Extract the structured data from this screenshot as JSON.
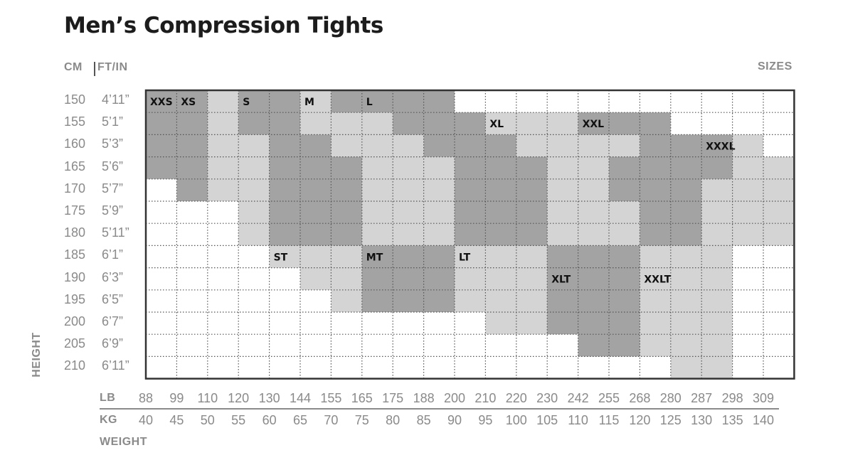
{
  "page": {
    "title": "Men’s Compression Tights",
    "cm_header": "CM",
    "ftin_header": "FT/IN",
    "sizes_header": "SIZES",
    "height_axis": "HEIGHT",
    "weight_axis": "WEIGHT",
    "lb_label": "LB",
    "kg_label": "KG"
  },
  "chart_data": {
    "type": "heatmap",
    "title": "Men’s Compression Tights",
    "ylabel": "HEIGHT",
    "xlabel": "WEIGHT",
    "height_cm": [
      "150",
      "155",
      "160",
      "165",
      "170",
      "175",
      "180",
      "185",
      "190",
      "195",
      "200",
      "205",
      "210"
    ],
    "height_ftin": [
      "4’11”",
      "5’1”",
      "5’3”",
      "5’6”",
      "5’7”",
      "5’9”",
      "5’11”",
      "6’1”",
      "6’3”",
      "6’5”",
      "6’7”",
      "6’9”",
      "6’11”"
    ],
    "weight_lb": [
      "88",
      "99",
      "110",
      "120",
      "130",
      "144",
      "155",
      "165",
      "175",
      "188",
      "200",
      "210",
      "220",
      "230",
      "242",
      "255",
      "268",
      "280",
      "287",
      "298",
      "309"
    ],
    "weight_kg": [
      "40",
      "45",
      "50",
      "55",
      "60",
      "65",
      "70",
      "75",
      "80",
      "85",
      "90",
      "95",
      "100",
      "105",
      "110",
      "115",
      "120",
      "125",
      "130",
      "135",
      "140"
    ],
    "colors": {
      "white": "#ffffff",
      "light": "#d4d4d4",
      "dark": "#a3a3a3",
      "frame": "#333333",
      "text": "#111111",
      "label": "#8a8a8a"
    },
    "sizes": [
      {
        "name": "XXS",
        "shade": "dark",
        "label_cell": [
          0,
          0
        ],
        "cells": [
          [
            0,
            0
          ],
          [
            1,
            0
          ],
          [
            2,
            0
          ],
          [
            3,
            0
          ],
          [
            1,
            1
          ],
          [
            2,
            1
          ],
          [
            3,
            1
          ],
          [
            4,
            1
          ]
        ]
      },
      {
        "name": "XS",
        "shade": "dark",
        "label_cell": [
          0,
          1
        ],
        "cells": [
          [
            0,
            1
          ]
        ]
      },
      {
        "name": "XS",
        "shade": "light",
        "label_cell": null,
        "cells": [
          [
            0,
            2
          ],
          [
            0,
            3
          ],
          [
            1,
            2
          ],
          [
            2,
            2
          ],
          [
            3,
            2
          ],
          [
            4,
            2
          ],
          [
            1,
            3
          ],
          [
            2,
            3
          ],
          [
            3,
            3
          ],
          [
            4,
            3
          ],
          [
            5,
            3
          ],
          [
            6,
            3
          ]
        ]
      },
      {
        "name": "S",
        "shade": "dark",
        "label_cell": [
          0,
          3
        ],
        "cells": [
          [
            0,
            4
          ],
          [
            1,
            3
          ],
          [
            1,
            4
          ],
          [
            2,
            4
          ],
          [
            2,
            5
          ],
          [
            3,
            4
          ],
          [
            3,
            5
          ],
          [
            3,
            6
          ],
          [
            4,
            4
          ],
          [
            4,
            5
          ],
          [
            4,
            6
          ],
          [
            5,
            4
          ],
          [
            5,
            5
          ],
          [
            5,
            6
          ],
          [
            6,
            4
          ],
          [
            6,
            5
          ],
          [
            6,
            6
          ]
        ]
      },
      {
        "name": "S",
        "shade": "light",
        "label_cell": null,
        "cells": [
          [
            0,
            3
          ],
          [
            1,
            5
          ],
          [
            1,
            6
          ],
          [
            2,
            3
          ],
          [
            2,
            6
          ],
          [
            2,
            7
          ],
          [
            3,
            3
          ],
          [
            3,
            7
          ],
          [
            4,
            3
          ],
          [
            4,
            7
          ],
          [
            5,
            3
          ],
          [
            5,
            7
          ],
          [
            6,
            3
          ],
          [
            6,
            7
          ]
        ]
      },
      {
        "name": "M",
        "shade": "light",
        "label_cell": [
          0,
          5
        ],
        "cells": [
          [
            0,
            5
          ],
          [
            0,
            6
          ],
          [
            1,
            7
          ],
          [
            1,
            8
          ],
          [
            2,
            8
          ],
          [
            2,
            9
          ],
          [
            3,
            8
          ],
          [
            3,
            9
          ],
          [
            4,
            7
          ],
          [
            4,
            8
          ],
          [
            4,
            9
          ],
          [
            5,
            7
          ],
          [
            5,
            8
          ],
          [
            5,
            9
          ],
          [
            6,
            7
          ],
          [
            6,
            8
          ],
          [
            6,
            9
          ]
        ]
      },
      {
        "name": "L",
        "shade": "dark",
        "label_cell": [
          0,
          7
        ],
        "cells": [
          [
            0,
            7
          ],
          [
            0,
            8
          ],
          [
            0,
            9
          ],
          [
            1,
            9
          ],
          [
            1,
            10
          ],
          [
            2,
            10
          ],
          [
            2,
            11
          ],
          [
            3,
            10
          ],
          [
            3,
            11
          ],
          [
            3,
            12
          ],
          [
            4,
            10
          ],
          [
            4,
            11
          ],
          [
            4,
            12
          ],
          [
            5,
            10
          ],
          [
            5,
            11
          ],
          [
            5,
            12
          ],
          [
            6,
            10
          ],
          [
            6,
            11
          ],
          [
            6,
            12
          ]
        ]
      },
      {
        "name": "XL",
        "shade": "light",
        "label_cell": [
          1,
          11
        ],
        "cells": [
          [
            1,
            11
          ],
          [
            1,
            12
          ],
          [
            1,
            13
          ],
          [
            1,
            14
          ],
          [
            2,
            13
          ],
          [
            2,
            14
          ],
          [
            2,
            15
          ],
          [
            3,
            13
          ],
          [
            3,
            14
          ],
          [
            3,
            15
          ],
          [
            4,
            13
          ],
          [
            4,
            14
          ],
          [
            4,
            15
          ],
          [
            5,
            13
          ],
          [
            5,
            14
          ],
          [
            5,
            15
          ],
          [
            6,
            13
          ],
          [
            6,
            14
          ],
          [
            6,
            15
          ]
        ]
      },
      {
        "name": "XXL",
        "shade": "dark",
        "label_cell": [
          1,
          14
        ],
        "cells": [
          [
            1,
            15
          ],
          [
            1,
            16
          ],
          [
            1,
            17
          ],
          [
            2,
            16
          ],
          [
            2,
            17
          ],
          [
            2,
            18
          ],
          [
            3,
            16
          ],
          [
            3,
            17
          ],
          [
            3,
            18
          ],
          [
            4,
            16
          ],
          [
            4,
            17
          ],
          [
            4,
            18
          ],
          [
            5,
            17
          ],
          [
            5,
            18
          ],
          [
            6,
            17
          ],
          [
            6,
            18
          ]
        ]
      },
      {
        "name": "XXXL",
        "shade": "light",
        "label_cell": [
          2,
          18
        ],
        "cells": [
          [
            2,
            19
          ],
          [
            3,
            19
          ],
          [
            3,
            20
          ],
          [
            4,
            19
          ],
          [
            4,
            20
          ],
          [
            5,
            19
          ],
          [
            5,
            20
          ],
          [
            6,
            19
          ],
          [
            6,
            20
          ]
        ]
      },
      {
        "name": "ST",
        "shade": "light",
        "label_cell": [
          7,
          4
        ],
        "cells": [
          [
            7,
            4
          ],
          [
            7,
            5
          ],
          [
            8,
            5
          ],
          [
            8,
            6
          ],
          [
            9,
            6
          ]
        ]
      },
      {
        "name": "MT",
        "shade": "dark",
        "label_cell": [
          7,
          7
        ],
        "cells": [
          [
            7,
            7
          ],
          [
            7,
            8
          ],
          [
            7,
            9
          ],
          [
            8,
            7
          ],
          [
            8,
            8
          ],
          [
            8,
            9
          ],
          [
            9,
            7
          ],
          [
            9,
            8
          ],
          [
            9,
            9
          ]
        ]
      },
      {
        "name": "LT",
        "shade": "light",
        "label_cell": [
          7,
          10
        ],
        "cells": [
          [
            7,
            10
          ],
          [
            7,
            11
          ],
          [
            7,
            12
          ],
          [
            7,
            13
          ],
          [
            8,
            10
          ],
          [
            8,
            11
          ],
          [
            8,
            12
          ],
          [
            8,
            13
          ],
          [
            9,
            10
          ],
          [
            9,
            11
          ],
          [
            9,
            12
          ],
          [
            9,
            13
          ],
          [
            10,
            11
          ],
          [
            10,
            12
          ],
          [
            10,
            13
          ]
        ]
      },
      {
        "name": "XLT",
        "shade": "dark",
        "label_cell": [
          8,
          13
        ],
        "cells": [
          [
            7,
            13
          ],
          [
            7,
            14
          ],
          [
            7,
            15
          ],
          [
            8,
            13
          ],
          [
            8,
            14
          ],
          [
            8,
            15
          ],
          [
            9,
            13
          ],
          [
            9,
            14
          ],
          [
            9,
            15
          ],
          [
            10,
            13
          ],
          [
            10,
            14
          ],
          [
            10,
            15
          ],
          [
            11,
            14
          ],
          [
            11,
            15
          ]
        ]
      },
      {
        "name": "XXLT",
        "shade": "light",
        "label_cell": [
          8,
          16
        ],
        "cells": [
          [
            7,
            16
          ],
          [
            7,
            17
          ],
          [
            7,
            18
          ],
          [
            8,
            16
          ],
          [
            8,
            17
          ],
          [
            8,
            18
          ],
          [
            9,
            16
          ],
          [
            9,
            17
          ],
          [
            9,
            18
          ],
          [
            10,
            16
          ],
          [
            10,
            17
          ],
          [
            10,
            18
          ],
          [
            11,
            16
          ],
          [
            11,
            17
          ],
          [
            11,
            18
          ],
          [
            12,
            17
          ],
          [
            12,
            18
          ]
        ]
      }
    ],
    "grid_rows": [
      [
        "D",
        "D",
        "L",
        "D",
        "D",
        "L",
        "D",
        "D",
        "D",
        "D",
        "W",
        "W",
        "W",
        "W",
        "W",
        "W",
        "W",
        "W",
        "W",
        "W",
        "W"
      ],
      [
        "D",
        "D",
        "L",
        "D",
        "D",
        "L",
        "L",
        "L",
        "D",
        "D",
        "D",
        "L",
        "L",
        "L",
        "D",
        "D",
        "D",
        "W",
        "W",
        "W",
        "W"
      ],
      [
        "D",
        "D",
        "L",
        "L",
        "D",
        "D",
        "L",
        "L",
        "L",
        "D",
        "D",
        "D",
        "L",
        "L",
        "L",
        "L",
        "D",
        "D",
        "D",
        "L",
        "W"
      ],
      [
        "D",
        "D",
        "L",
        "L",
        "D",
        "D",
        "D",
        "L",
        "L",
        "L",
        "D",
        "D",
        "D",
        "L",
        "L",
        "D",
        "D",
        "D",
        "D",
        "L",
        "L"
      ],
      [
        "W",
        "D",
        "L",
        "L",
        "D",
        "D",
        "D",
        "L",
        "L",
        "L",
        "D",
        "D",
        "D",
        "L",
        "L",
        "D",
        "D",
        "D",
        "L",
        "L",
        "L"
      ],
      [
        "W",
        "W",
        "W",
        "L",
        "D",
        "D",
        "D",
        "L",
        "L",
        "L",
        "D",
        "D",
        "D",
        "L",
        "L",
        "L",
        "D",
        "D",
        "L",
        "L",
        "L"
      ],
      [
        "W",
        "W",
        "W",
        "L",
        "D",
        "D",
        "D",
        "L",
        "L",
        "L",
        "D",
        "D",
        "D",
        "L",
        "L",
        "L",
        "D",
        "D",
        "L",
        "L",
        "L"
      ],
      [
        "W",
        "W",
        "W",
        "W",
        "L",
        "L",
        "L",
        "D",
        "D",
        "D",
        "L",
        "L",
        "L",
        "D",
        "D",
        "D",
        "L",
        "L",
        "L",
        "W",
        "W"
      ],
      [
        "W",
        "W",
        "W",
        "W",
        "W",
        "L",
        "L",
        "D",
        "D",
        "D",
        "L",
        "L",
        "L",
        "D",
        "D",
        "D",
        "L",
        "L",
        "L",
        "W",
        "W"
      ],
      [
        "W",
        "W",
        "W",
        "W",
        "W",
        "W",
        "L",
        "D",
        "D",
        "D",
        "L",
        "L",
        "L",
        "D",
        "D",
        "D",
        "L",
        "L",
        "L",
        "W",
        "W"
      ],
      [
        "W",
        "W",
        "W",
        "W",
        "W",
        "W",
        "W",
        "W",
        "W",
        "W",
        "W",
        "L",
        "L",
        "D",
        "D",
        "D",
        "L",
        "L",
        "L",
        "W",
        "W"
      ],
      [
        "W",
        "W",
        "W",
        "W",
        "W",
        "W",
        "W",
        "W",
        "W",
        "W",
        "W",
        "W",
        "W",
        "W",
        "D",
        "D",
        "L",
        "L",
        "L",
        "W",
        "W"
      ],
      [
        "W",
        "W",
        "W",
        "W",
        "W",
        "W",
        "W",
        "W",
        "W",
        "W",
        "W",
        "W",
        "W",
        "W",
        "W",
        "W",
        "W",
        "L",
        "L",
        "W",
        "W"
      ]
    ],
    "labels": [
      {
        "text": "XXS",
        "row": 0,
        "col": 0
      },
      {
        "text": "XS",
        "row": 0,
        "col": 1
      },
      {
        "text": "S",
        "row": 0,
        "col": 3
      },
      {
        "text": "M",
        "row": 0,
        "col": 5
      },
      {
        "text": "L",
        "row": 0,
        "col": 7
      },
      {
        "text": "XL",
        "row": 1,
        "col": 11
      },
      {
        "text": "XXL",
        "row": 1,
        "col": 14
      },
      {
        "text": "XXXL",
        "row": 2,
        "col": 18
      },
      {
        "text": "ST",
        "row": 7,
        "col": 4
      },
      {
        "text": "MT",
        "row": 7,
        "col": 7
      },
      {
        "text": "LT",
        "row": 7,
        "col": 10
      },
      {
        "text": "XLT",
        "row": 8,
        "col": 13
      },
      {
        "text": "XXLT",
        "row": 8,
        "col": 16
      }
    ]
  }
}
